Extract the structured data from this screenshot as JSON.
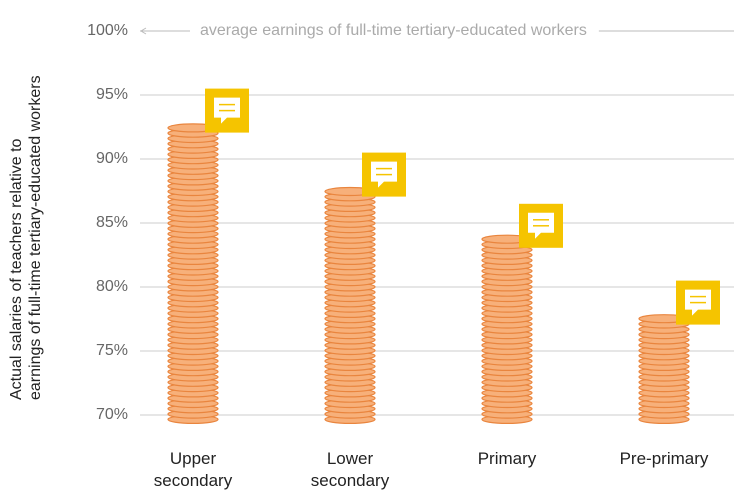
{
  "chart_data": {
    "type": "coin-bar",
    "ylabel": [
      "Actual salaries of teachers relative to",
      "earnings of full-time tertiary-educated workers"
    ],
    "annotation": "average earnings of full-time tertiary-educated workers",
    "categories": [
      "Upper secondary",
      "Lower secondary",
      "Primary",
      "Pre-primary"
    ],
    "values": [
      93,
      88,
      84,
      78
    ],
    "color": "#f7b07a",
    "ylim": [
      69.5,
      100
    ],
    "yticks": [
      {
        "value": 70,
        "label": "70%"
      },
      {
        "value": 75,
        "label": "75%"
      },
      {
        "value": 80,
        "label": "80%"
      },
      {
        "value": 85,
        "label": "85%"
      },
      {
        "value": 90,
        "label": "90%"
      },
      {
        "value": 95,
        "label": "95%"
      },
      {
        "value": 100,
        "label": "100%"
      }
    ],
    "grid": true
  }
}
